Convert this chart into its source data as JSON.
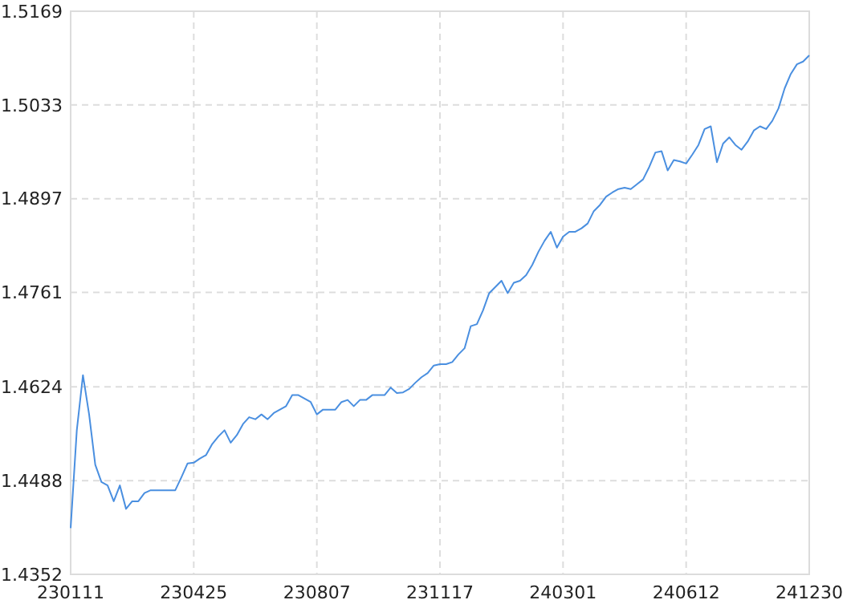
{
  "chart_data": {
    "type": "line",
    "categories": [
      "230111",
      null,
      null,
      null,
      null,
      null,
      null,
      null,
      null,
      null,
      null,
      null,
      null,
      null,
      null,
      null,
      null,
      null,
      null,
      null,
      "230425",
      null,
      null,
      null,
      null,
      null,
      null,
      null,
      null,
      null,
      null,
      null,
      null,
      null,
      null,
      null,
      null,
      null,
      null,
      null,
      "230807",
      null,
      null,
      null,
      null,
      null,
      null,
      null,
      null,
      null,
      null,
      null,
      null,
      null,
      null,
      null,
      null,
      null,
      null,
      null,
      "231117",
      null,
      null,
      null,
      null,
      null,
      null,
      null,
      null,
      null,
      null,
      null,
      null,
      null,
      null,
      null,
      null,
      null,
      null,
      null,
      "240301",
      null,
      null,
      null,
      null,
      null,
      null,
      null,
      null,
      null,
      null,
      null,
      null,
      null,
      null,
      null,
      null,
      null,
      null,
      null,
      "240612",
      null,
      null,
      null,
      null,
      null,
      null,
      null,
      null,
      null,
      null,
      null,
      null,
      null,
      null,
      null,
      null,
      null,
      null,
      null,
      "241230"
    ],
    "values": [
      1.4419,
      1.4561,
      1.4641,
      1.4584,
      1.4511,
      1.4486,
      1.4481,
      1.4458,
      1.4481,
      1.4447,
      1.4458,
      1.4458,
      1.447,
      1.4474,
      1.4474,
      1.4474,
      1.4474,
      1.4474,
      1.4493,
      1.4513,
      1.4514,
      1.452,
      1.4525,
      1.4541,
      1.4552,
      1.4561,
      1.4543,
      1.4554,
      1.457,
      1.458,
      1.4577,
      1.4584,
      1.4577,
      1.4586,
      1.4591,
      1.4596,
      1.4612,
      1.4612,
      1.4607,
      1.4602,
      1.4584,
      1.4591,
      1.4591,
      1.4591,
      1.4602,
      1.4605,
      1.4596,
      1.4605,
      1.4605,
      1.4612,
      1.4612,
      1.4612,
      1.4623,
      1.4615,
      1.4616,
      1.4621,
      1.463,
      1.4638,
      1.4644,
      1.4655,
      1.4657,
      1.4657,
      1.466,
      1.4671,
      1.468,
      1.4712,
      1.4715,
      1.4735,
      1.476,
      1.4769,
      1.4778,
      1.476,
      1.4775,
      1.4778,
      1.4786,
      1.4801,
      1.482,
      1.4836,
      1.4849,
      1.4826,
      1.4842,
      1.4849,
      1.4849,
      1.4854,
      1.4861,
      1.4879,
      1.4888,
      1.49,
      1.4906,
      1.4911,
      1.4913,
      1.4911,
      1.4918,
      1.4925,
      1.4943,
      1.4964,
      1.4966,
      1.4938,
      1.4953,
      1.4951,
      1.4948,
      1.4961,
      1.4975,
      1.4998,
      1.5002,
      1.495,
      1.4977,
      1.4986,
      1.4975,
      1.4968,
      1.498,
      1.4996,
      1.5002,
      1.4998,
      1.501,
      1.5028,
      1.5057,
      1.5078,
      1.5092,
      1.5096,
      1.5105
    ],
    "color": "#4a8fe0",
    "ylim": [
      1.4352,
      1.5169
    ],
    "yticks": [
      1.4352,
      1.4488,
      1.4624,
      1.4761,
      1.4897,
      1.5033,
      1.5169
    ],
    "grid": true
  }
}
